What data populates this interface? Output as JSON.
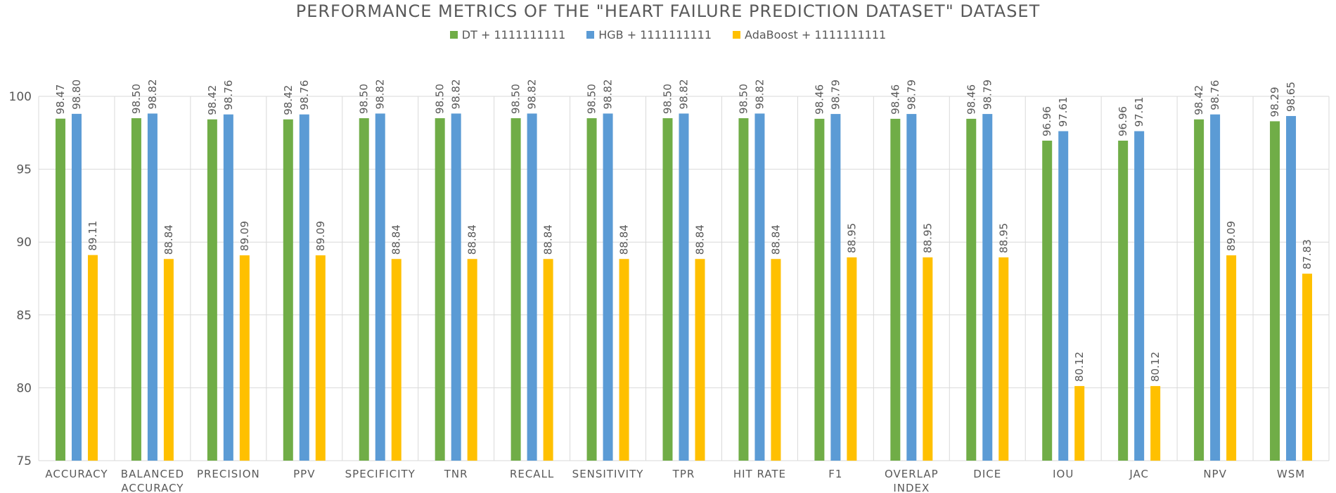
{
  "chart_data": {
    "type": "bar",
    "title": "PERFORMANCE METRICS OF THE \"HEART FAILURE PREDICTION DATASET\" DATASET",
    "categories": [
      [
        "ACCURACY"
      ],
      [
        "BALANCED",
        "ACCURACY"
      ],
      [
        "PRECISION"
      ],
      [
        "PPV"
      ],
      [
        "SPECIFICITY"
      ],
      [
        "TNR"
      ],
      [
        "RECALL"
      ],
      [
        "SENSITIVITY"
      ],
      [
        "TPR"
      ],
      [
        "HIT RATE"
      ],
      [
        "F1"
      ],
      [
        "OVERLAP",
        "INDEX"
      ],
      [
        "DICE"
      ],
      [
        "IOU"
      ],
      [
        "JAC"
      ],
      [
        "NPV"
      ],
      [
        "WSM"
      ]
    ],
    "series": [
      {
        "name": "DT + 1111111111",
        "color": "#70AD47",
        "values": [
          98.47,
          98.5,
          98.42,
          98.42,
          98.5,
          98.5,
          98.5,
          98.5,
          98.5,
          98.5,
          98.46,
          98.46,
          98.46,
          96.96,
          96.96,
          98.42,
          98.29
        ]
      },
      {
        "name": "HGB + 1111111111",
        "color": "#5B9BD5",
        "values": [
          98.8,
          98.82,
          98.76,
          98.76,
          98.82,
          98.82,
          98.82,
          98.82,
          98.82,
          98.82,
          98.79,
          98.79,
          98.79,
          97.61,
          97.61,
          98.76,
          98.65
        ]
      },
      {
        "name": "AdaBoost + 1111111111",
        "color": "#FFC000",
        "values": [
          89.11,
          88.84,
          89.09,
          89.09,
          88.84,
          88.84,
          88.84,
          88.84,
          88.84,
          88.84,
          88.95,
          88.95,
          88.95,
          80.12,
          80.12,
          89.09,
          87.83
        ]
      }
    ],
    "ylim": [
      75,
      100
    ],
    "yticks": [
      75,
      80,
      85,
      90,
      95,
      100
    ],
    "grid": true,
    "gridColor": "#D9D9D9",
    "legend_position": "top"
  }
}
